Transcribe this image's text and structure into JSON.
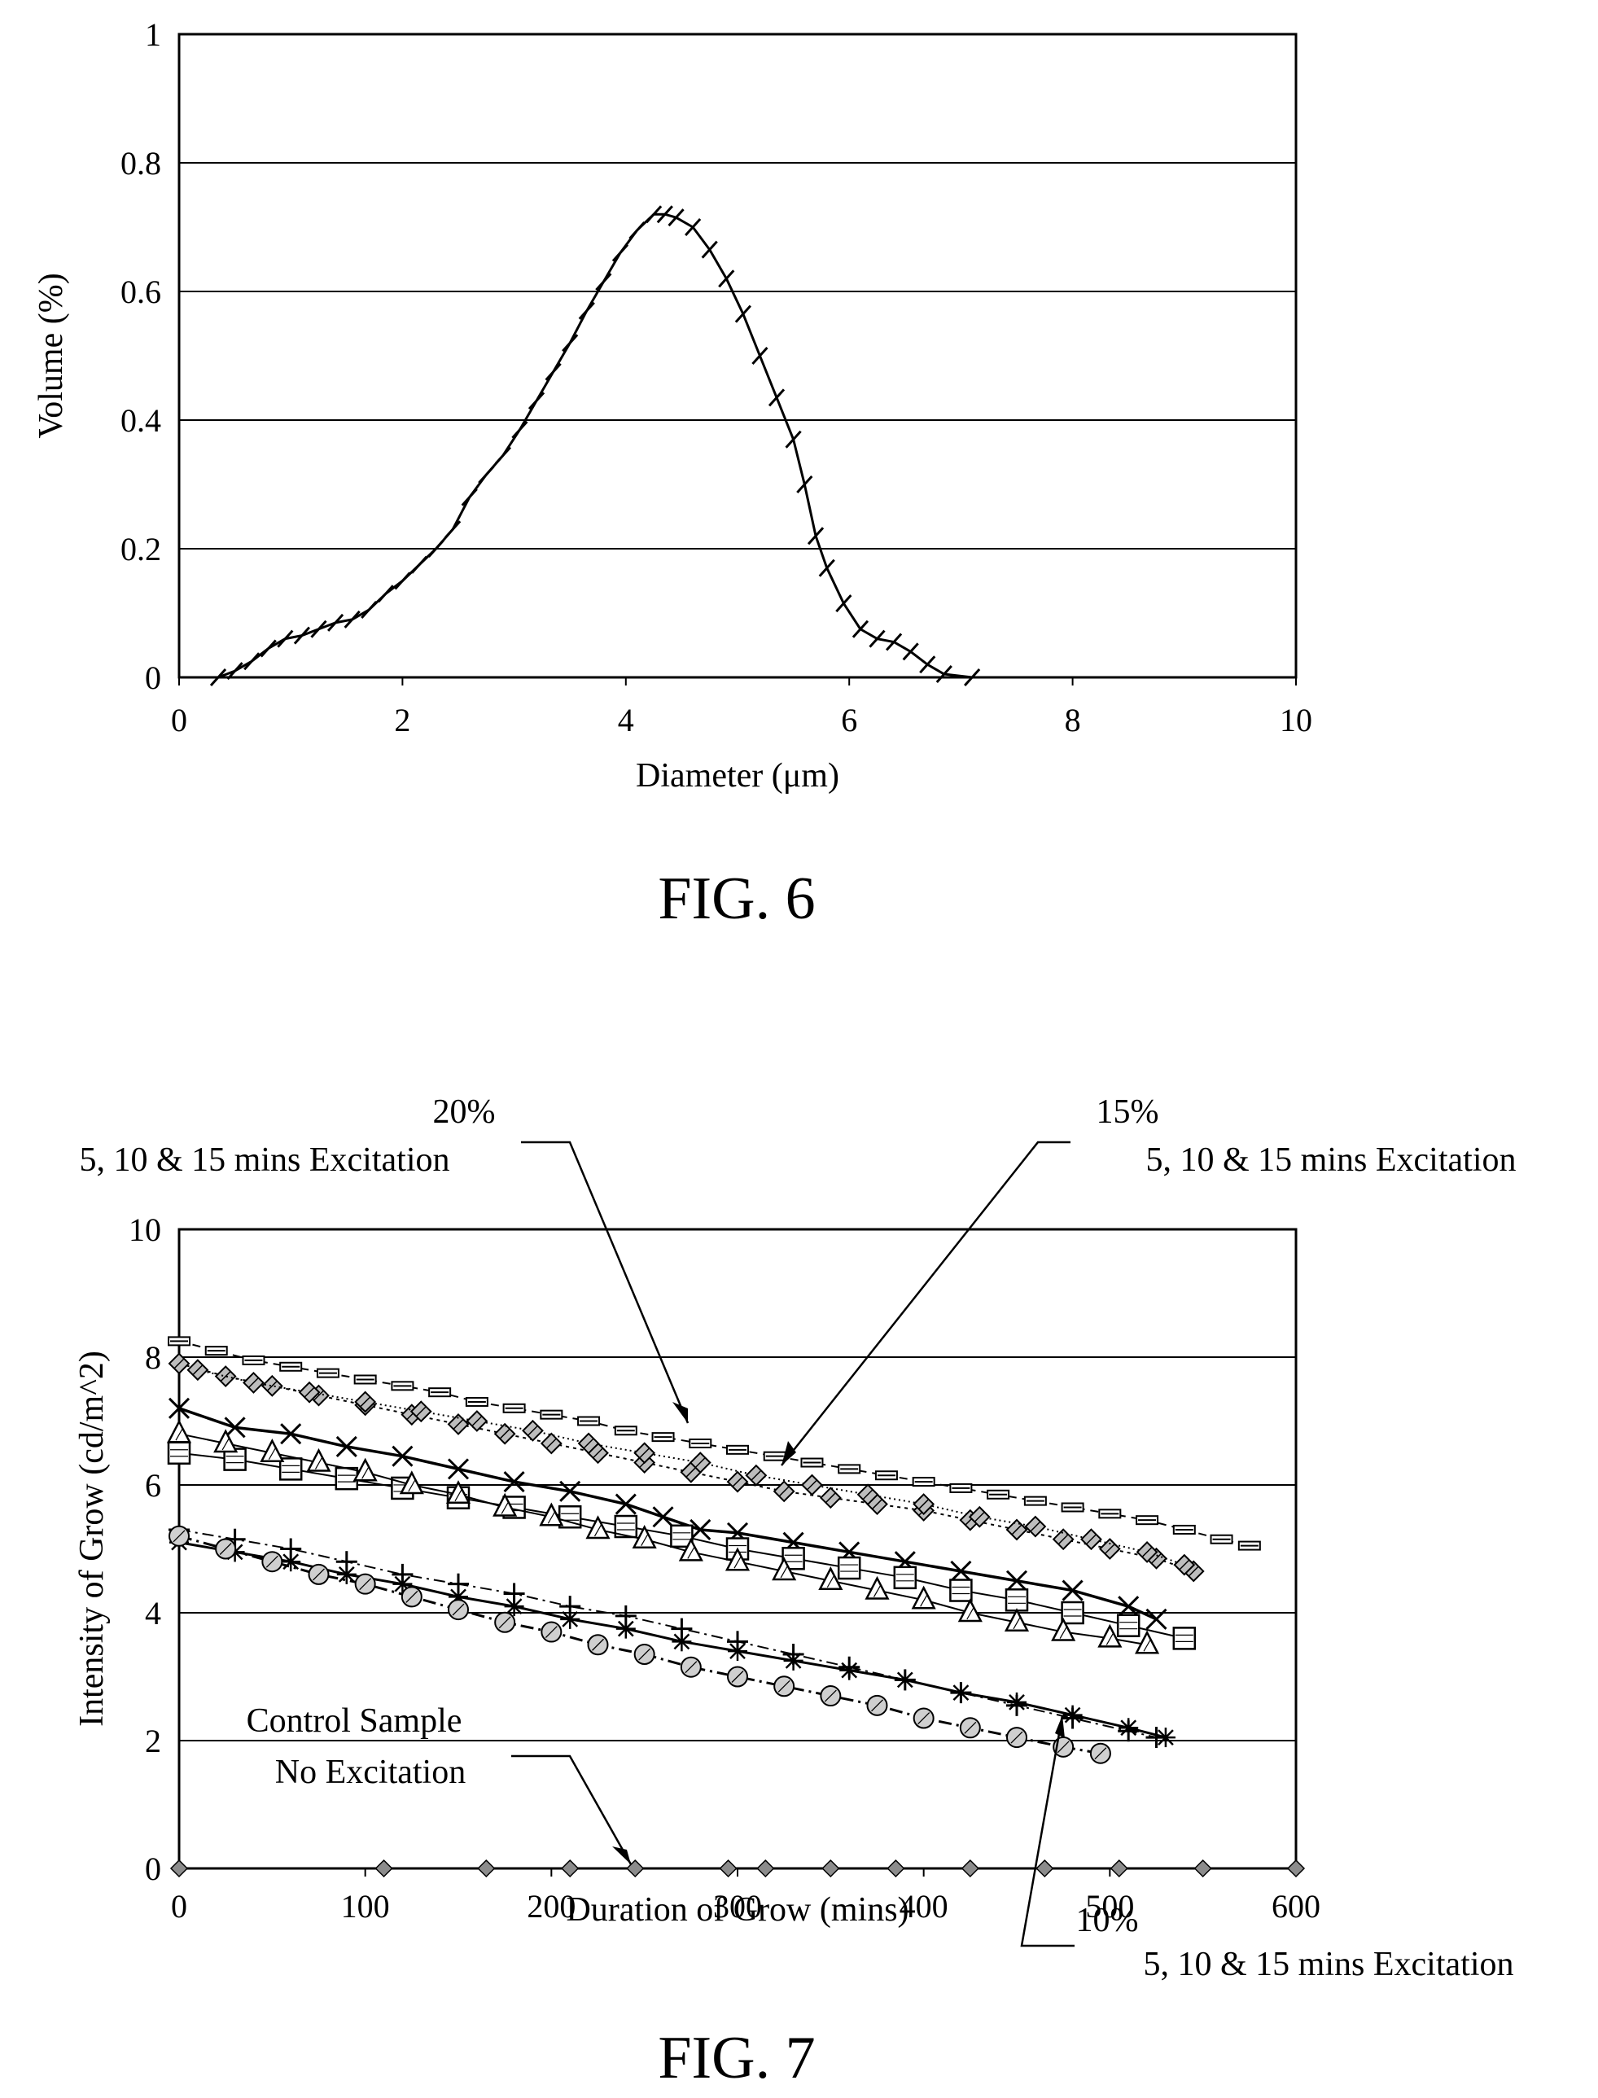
{
  "figures": [
    {
      "caption": "FIG. 6",
      "chart_data": {
        "type": "line",
        "title": "",
        "xlabel": "Diameter (μm)",
        "ylabel": "Volume (%)",
        "xlim": [
          0,
          10
        ],
        "ylim": [
          0,
          1
        ],
        "xticks": [
          "0",
          "2",
          "4",
          "6",
          "8",
          "10"
        ],
        "yticks": [
          "0",
          "0.2",
          "0.4",
          "0.6",
          "0.8",
          "1"
        ],
        "grid": "horizontal",
        "series": [
          {
            "marker": "tick",
            "x": [
              0.35,
              0.5,
              0.65,
              0.8,
              0.95,
              1.1,
              1.25,
              1.4,
              1.55,
              1.7,
              1.85,
              2.0,
              2.15,
              2.3,
              2.45,
              2.6,
              2.75,
              2.9,
              3.05,
              3.2,
              3.35,
              3.5,
              3.65,
              3.8,
              3.95,
              4.1,
              4.25,
              4.35,
              4.45,
              4.6,
              4.75,
              4.9,
              5.05,
              5.2,
              5.35,
              5.5,
              5.6,
              5.7,
              5.8,
              5.95,
              6.1,
              6.25,
              6.4,
              6.55,
              6.7,
              6.85,
              7.1
            ],
            "y": [
              0.0,
              0.01,
              0.025,
              0.045,
              0.06,
              0.065,
              0.075,
              0.085,
              0.09,
              0.105,
              0.13,
              0.15,
              0.175,
              0.2,
              0.23,
              0.28,
              0.315,
              0.345,
              0.385,
              0.43,
              0.475,
              0.52,
              0.57,
              0.615,
              0.66,
              0.695,
              0.72,
              0.72,
              0.715,
              0.7,
              0.665,
              0.62,
              0.565,
              0.5,
              0.435,
              0.37,
              0.3,
              0.22,
              0.17,
              0.115,
              0.075,
              0.06,
              0.055,
              0.04,
              0.02,
              0.005,
              0.0
            ]
          }
        ]
      }
    },
    {
      "caption": "FIG. 7",
      "chart_data": {
        "type": "line",
        "title": "",
        "xlabel": "Duration of Grow (mins)",
        "ylabel": "Intensity of Grow (cd/m^2)",
        "xlim": [
          0,
          600
        ],
        "ylim": [
          0,
          10
        ],
        "xticks": [
          "0",
          "100",
          "200",
          "300",
          "400",
          "500",
          "600"
        ],
        "yticks": [
          "0",
          "2",
          "4",
          "6",
          "8",
          "10"
        ],
        "grid": "horizontal",
        "annotations": [
          {
            "lines": [
              "20%",
              "5, 10 & 15 mins Excitation"
            ]
          },
          {
            "lines": [
              "15%",
              "5, 10 & 15 mins Excitation"
            ]
          },
          {
            "lines": [
              "Control Sample",
              "No Excitation"
            ]
          },
          {
            "lines": [
              "10%",
              "5, 10 & 15 mins Excitation"
            ]
          }
        ],
        "series": [
          {
            "group": "20%",
            "marker": "dash",
            "dash": "10,7",
            "stroke_width": 2,
            "x": [
              0,
              20,
              40,
              60,
              80,
              100,
              120,
              140,
              160,
              180,
              200,
              220,
              240,
              260,
              280,
              300,
              320,
              340,
              360,
              380,
              400,
              420,
              440,
              460,
              480,
              500,
              520,
              540,
              560,
              575
            ],
            "y": [
              8.25,
              8.1,
              7.95,
              7.85,
              7.75,
              7.65,
              7.55,
              7.45,
              7.3,
              7.2,
              7.1,
              7.0,
              6.85,
              6.75,
              6.65,
              6.55,
              6.45,
              6.35,
              6.25,
              6.15,
              6.05,
              5.95,
              5.85,
              5.75,
              5.65,
              5.55,
              5.45,
              5.3,
              5.15,
              5.05
            ]
          },
          {
            "group": "20%",
            "marker": "diamond",
            "dash": "4,5",
            "stroke_width": 2,
            "x": [
              0,
              25,
              50,
              75,
              100,
              125,
              150,
              175,
              200,
              225,
              250,
              275,
              300,
              325,
              350,
              375,
              400,
              425,
              450,
              475,
              500,
              525,
              545
            ],
            "y": [
              7.9,
              7.7,
              7.55,
              7.4,
              7.25,
              7.1,
              6.95,
              6.8,
              6.65,
              6.5,
              6.35,
              6.2,
              6.05,
              5.9,
              5.8,
              5.7,
              5.6,
              5.45,
              5.3,
              5.15,
              5.0,
              4.85,
              4.65
            ]
          },
          {
            "group": "20%",
            "marker": "diamond",
            "dash": "2,4",
            "stroke_width": 2,
            "x": [
              10,
              40,
              70,
              100,
              130,
              160,
              190,
              220,
              250,
              280,
              310,
              340,
              370,
              400,
              430,
              460,
              490,
              520,
              540
            ],
            "y": [
              7.8,
              7.6,
              7.45,
              7.3,
              7.15,
              7.0,
              6.85,
              6.65,
              6.5,
              6.35,
              6.15,
              6.0,
              5.85,
              5.7,
              5.5,
              5.35,
              5.15,
              4.95,
              4.75
            ]
          },
          {
            "group": "15%",
            "marker": "x",
            "dash": "",
            "stroke_width": 3.5,
            "x": [
              0,
              30,
              60,
              90,
              120,
              150,
              180,
              210,
              240,
              260,
              280,
              300,
              330,
              360,
              390,
              420,
              450,
              480,
              510,
              525
            ],
            "y": [
              7.2,
              6.9,
              6.8,
              6.6,
              6.45,
              6.25,
              6.05,
              5.9,
              5.7,
              5.5,
              5.3,
              5.25,
              5.1,
              4.95,
              4.8,
              4.65,
              4.5,
              4.35,
              4.1,
              3.9
            ]
          },
          {
            "group": "15%",
            "marker": "square",
            "dash": "",
            "stroke_width": 2,
            "x": [
              0,
              30,
              60,
              90,
              120,
              150,
              180,
              210,
              240,
              270,
              300,
              330,
              360,
              390,
              420,
              450,
              480,
              510,
              540
            ],
            "y": [
              6.5,
              6.4,
              6.25,
              6.1,
              5.95,
              5.8,
              5.65,
              5.5,
              5.35,
              5.2,
              5.0,
              4.85,
              4.7,
              4.55,
              4.35,
              4.2,
              4.0,
              3.8,
              3.6
            ]
          },
          {
            "group": "15%",
            "marker": "triangle",
            "dash": "",
            "stroke_width": 2,
            "x": [
              0,
              25,
              50,
              75,
              100,
              125,
              150,
              175,
              200,
              225,
              250,
              275,
              300,
              325,
              350,
              375,
              400,
              425,
              450,
              475,
              500,
              520
            ],
            "y": [
              6.8,
              6.65,
              6.5,
              6.35,
              6.2,
              6.0,
              5.85,
              5.65,
              5.5,
              5.3,
              5.15,
              4.95,
              4.8,
              4.65,
              4.5,
              4.35,
              4.2,
              4.0,
              3.85,
              3.7,
              3.6,
              3.5
            ]
          },
          {
            "group": "10%",
            "marker": "plus",
            "dash": "14,6,3,6",
            "stroke_width": 2,
            "x": [
              0,
              30,
              60,
              90,
              120,
              150,
              180,
              210,
              240,
              270,
              300,
              330,
              360,
              390,
              420,
              450,
              480,
              510,
              525
            ],
            "y": [
              5.3,
              5.15,
              5.0,
              4.8,
              4.6,
              4.45,
              4.3,
              4.1,
              3.95,
              3.75,
              3.55,
              3.35,
              3.15,
              2.95,
              2.75,
              2.55,
              2.35,
              2.15,
              2.05
            ]
          },
          {
            "group": "10%",
            "marker": "asterisk",
            "dash": "",
            "stroke_width": 3,
            "x": [
              0,
              30,
              60,
              90,
              120,
              150,
              180,
              210,
              240,
              270,
              300,
              330,
              360,
              390,
              420,
              450,
              480,
              510,
              530
            ],
            "y": [
              5.1,
              4.95,
              4.8,
              4.6,
              4.45,
              4.25,
              4.1,
              3.9,
              3.75,
              3.55,
              3.4,
              3.25,
              3.1,
              2.95,
              2.75,
              2.6,
              2.4,
              2.2,
              2.05
            ]
          },
          {
            "group": "10%",
            "marker": "circle",
            "dash": "16,6,3,6",
            "stroke_width": 3,
            "x": [
              0,
              25,
              50,
              75,
              100,
              125,
              150,
              175,
              200,
              225,
              250,
              275,
              300,
              325,
              350,
              375,
              400,
              425,
              450,
              475,
              495
            ],
            "y": [
              5.2,
              5.0,
              4.8,
              4.6,
              4.45,
              4.25,
              4.05,
              3.85,
              3.7,
              3.5,
              3.35,
              3.15,
              3.0,
              2.85,
              2.7,
              2.55,
              2.35,
              2.2,
              2.05,
              1.9,
              1.8
            ]
          },
          {
            "group": "Control",
            "marker": "diamond-solid",
            "dash": "",
            "stroke_width": 2.5,
            "x": [
              0,
              110,
              165,
              210,
              245,
              295,
              315,
              350,
              385,
              425,
              465,
              505,
              550,
              600
            ],
            "y": [
              0,
              0,
              0,
              0,
              0,
              0,
              0,
              0,
              0,
              0,
              0,
              0,
              0,
              0
            ]
          }
        ]
      }
    }
  ]
}
